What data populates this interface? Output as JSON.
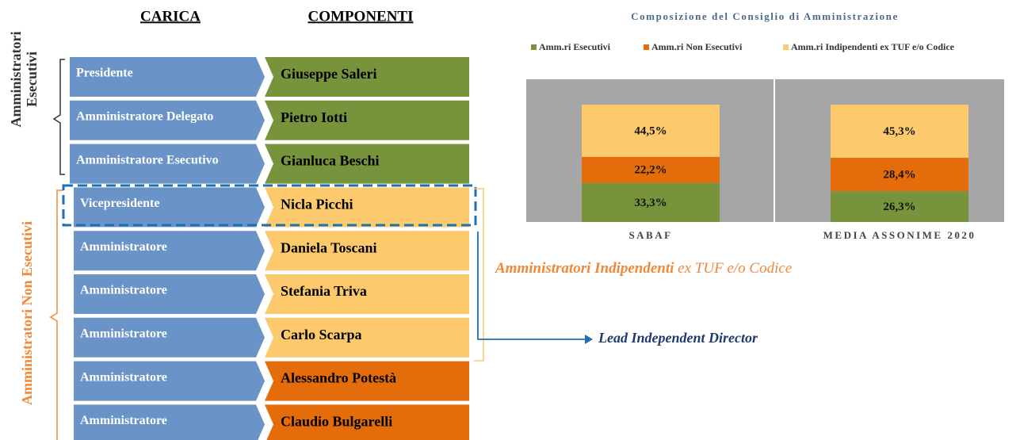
{
  "headers": {
    "role": "CARICA",
    "name": "COMPONENTI"
  },
  "groups": {
    "executive": [
      "Amministratori",
      "Esecutivi"
    ],
    "non_executive": "Amministratori Non Esecutivi"
  },
  "rows": [
    {
      "role": "Presidente",
      "name": "Giuseppe Saleri",
      "color": "#77933c"
    },
    {
      "role": "Amministratore Delegato",
      "name": "Pietro Iotti",
      "color": "#77933c"
    },
    {
      "role": "Amministratore Esecutivo",
      "name": "Gianluca Beschi",
      "color": "#77933c"
    },
    {
      "role": "Vicepresidente",
      "name": "Nicla Picchi",
      "color": "#fcca6c"
    },
    {
      "role": "Amministratore",
      "name": "Daniela Toscani",
      "color": "#fcca6c"
    },
    {
      "role": "Amministratore",
      "name": "Stefania Triva",
      "color": "#fcca6c"
    },
    {
      "role": "Amministratore",
      "name": "Carlo Scarpa",
      "color": "#fcca6c"
    },
    {
      "role": "Amministratore",
      "name": "Alessandro Potestà",
      "color": "#e46c0a"
    },
    {
      "role": "Amministratore",
      "name": "Claudio Bulgarelli",
      "color": "#e46c0a"
    }
  ],
  "independent_label": {
    "bold": "Amministratori Indipendenti",
    "rest": "ex TUF e/o Codice"
  },
  "lead_label": "Lead Independent Director",
  "chart_data": {
    "type": "bar",
    "stacked": true,
    "title": "Composizione del Consiglio di Amministrazione",
    "categories": [
      "SABAF",
      "MEDIA ASSONIME 2020"
    ],
    "series": [
      {
        "name": "Amm.ri Esecutivi",
        "color": "#77933c",
        "values": [
          33.3,
          26.3
        ],
        "value_labels": [
          "33,3%",
          "26,3%"
        ]
      },
      {
        "name": "Amm.ri Non Esecutivi",
        "color": "#e46c0a",
        "values": [
          22.2,
          28.4
        ],
        "value_labels": [
          "22,2%",
          "28,4%"
        ]
      },
      {
        "name": "Amm.ri Indipendenti ex TUF e/o Codice",
        "color": "#fcca6c",
        "values": [
          44.5,
          45.3
        ],
        "value_labels": [
          "44,5%",
          "45,3%"
        ]
      }
    ]
  }
}
